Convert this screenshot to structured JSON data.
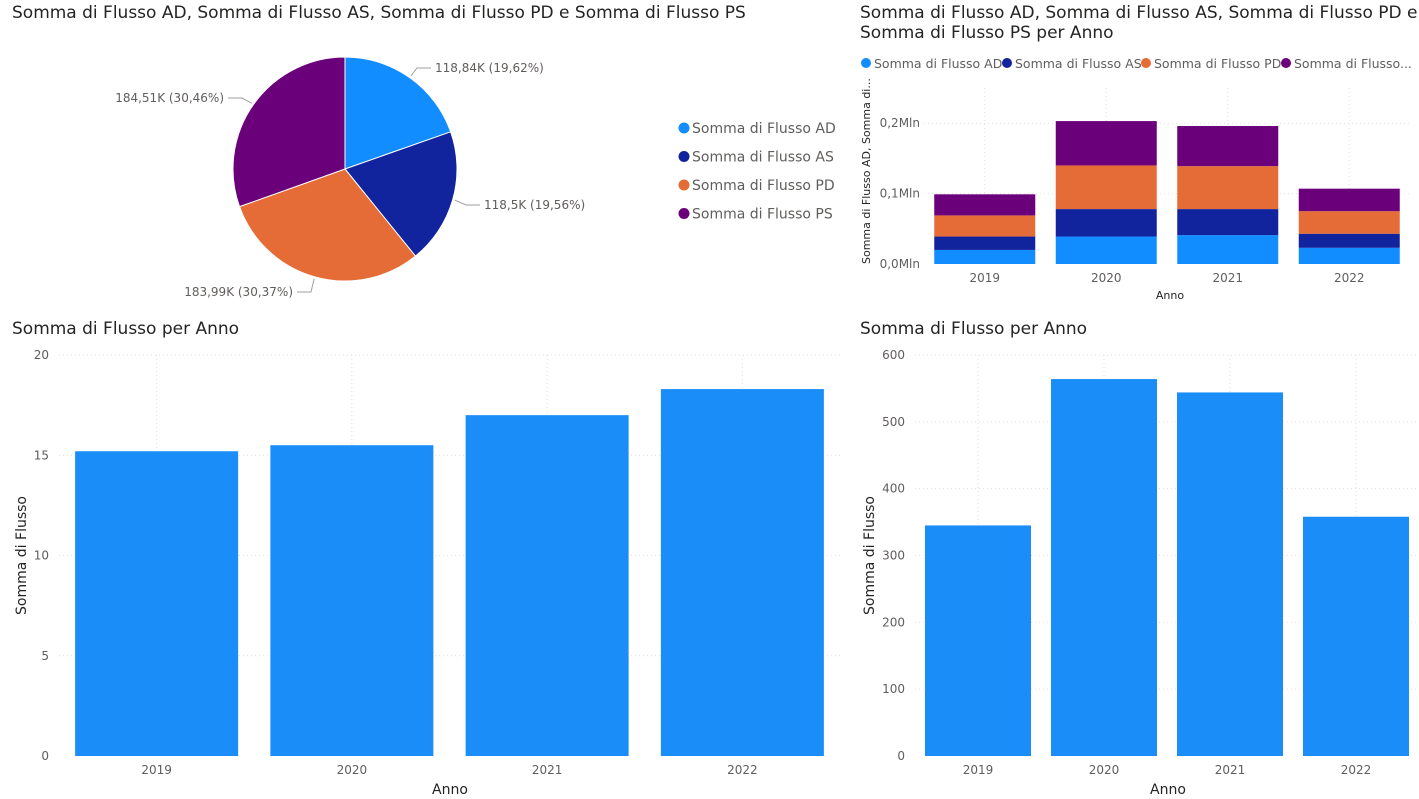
{
  "colors": {
    "AD": "#118DFF",
    "AS": "#12239E",
    "PD": "#E66C37",
    "PS": "#6B007B",
    "bar": "#1A8DF9"
  },
  "chart_data": [
    {
      "type": "pie",
      "title": "Somma di Flusso AD, Somma di Flusso AS, Somma di Flusso PD e Somma di Flusso PS",
      "slices": [
        {
          "name": "Somma di Flusso AD",
          "value": 118840,
          "label": "118,84K (19,62%)",
          "color": "#118DFF"
        },
        {
          "name": "Somma di Flusso AS",
          "value": 118500,
          "label": "118,5K (19,56%)",
          "color": "#12239E"
        },
        {
          "name": "Somma di Flusso PD",
          "value": 183990,
          "label": "183,99K (30,37%)",
          "color": "#E66C37"
        },
        {
          "name": "Somma di Flusso PS",
          "value": 184510,
          "label": "184,51K (30,46%)",
          "color": "#6B007B"
        }
      ],
      "legend": [
        "Somma di Flusso AD",
        "Somma di Flusso AS",
        "Somma di Flusso PD",
        "Somma di Flusso PS"
      ],
      "legend_position": "right"
    },
    {
      "type": "bar",
      "stacked": true,
      "title_line1": "Somma di Flusso AD, Somma di Flusso AS, Somma di Flusso PD e",
      "title_line2": "Somma di Flusso PS per Anno",
      "categories": [
        "2019",
        "2020",
        "2021",
        "2022"
      ],
      "series": [
        {
          "name": "Somma di Flusso AD",
          "color": "#118DFF",
          "values": [
            20000,
            39000,
            41000,
            23000
          ]
        },
        {
          "name": "Somma di Flusso AS",
          "color": "#12239E",
          "values": [
            19000,
            39000,
            37000,
            20000
          ]
        },
        {
          "name": "Somma di Flusso PD",
          "color": "#E66C37",
          "values": [
            30000,
            62000,
            61000,
            32000
          ]
        },
        {
          "name": "Somma di Flusso PS",
          "color": "#6B007B",
          "values": [
            30000,
            63000,
            57000,
            32000
          ]
        }
      ],
      "legend_labels": [
        "Somma di Flusso AD",
        "Somma di Flusso AS",
        "Somma di Flusso PD",
        "Somma di Flusso..."
      ],
      "legend_position": "top",
      "xlabel": "Anno",
      "ylabel": "Somma di Flusso AD, Somma di...",
      "yticks": [
        {
          "value": 0,
          "label": "0,0Mln"
        },
        {
          "value": 100000,
          "label": "0,1Mln"
        },
        {
          "value": 200000,
          "label": "0,2Mln"
        }
      ],
      "ylim": [
        0,
        250000
      ],
      "grid": true
    },
    {
      "type": "bar",
      "title": "Somma di Flusso per Anno",
      "categories": [
        "2019",
        "2020",
        "2021",
        "2022"
      ],
      "values": [
        15.2,
        15.5,
        17.0,
        18.3
      ],
      "xlabel": "Anno",
      "ylabel": "Somma di Flusso",
      "yticks": [
        0,
        5,
        10,
        15,
        20
      ],
      "ylim": [
        0,
        20
      ],
      "grid": true
    },
    {
      "type": "bar",
      "title": "Somma di Flusso per Anno",
      "categories": [
        "2019",
        "2020",
        "2021",
        "2022"
      ],
      "values": [
        345,
        564,
        544,
        358
      ],
      "xlabel": "Anno",
      "ylabel": "Somma di Flusso",
      "yticks": [
        0,
        100,
        200,
        300,
        400,
        500,
        600
      ],
      "ylim": [
        0,
        600
      ],
      "grid": true
    }
  ]
}
